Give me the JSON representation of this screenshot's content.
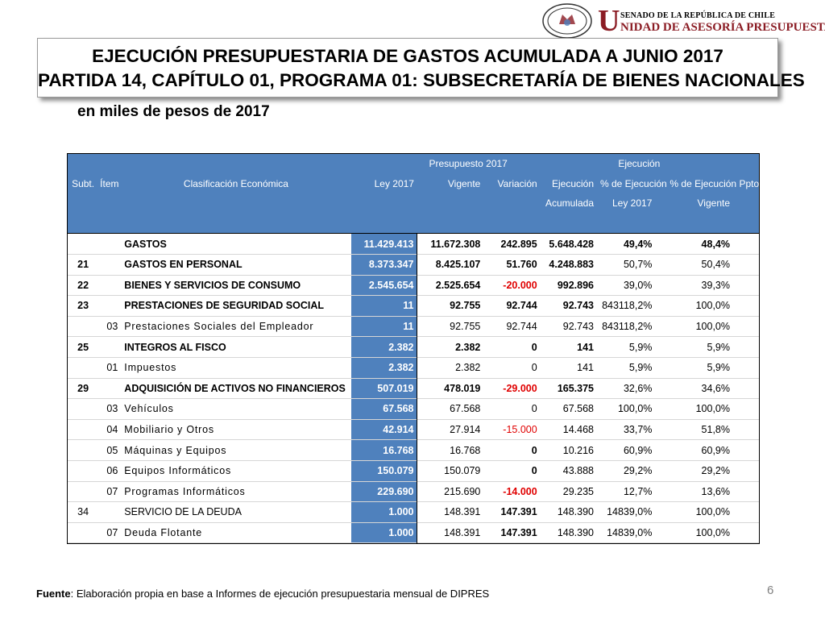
{
  "header": {
    "logo_small": "SENADO DE LA REPÚBLICA DE CHILE",
    "logo_initial": "U",
    "logo_main": "NIDAD DE ASESORÍA PRESUPUESTARIA",
    "seal_text": "REPÚBLICA DE CHILE",
    "seal_bottom": "SENADO"
  },
  "title": {
    "line1": "EJECUCIÓN PRESUPUESTARIA DE GASTOS ACUMULADA A JUNIO 2017",
    "line2": "PARTIDA 14, CAPÍTULO 01, PROGRAMA 01: SUBSECRETARÍA DE BIENES NACIONALES"
  },
  "subtitle": "en miles de pesos de 2017",
  "table": {
    "group_presupuesto": "Presupuesto 2017",
    "group_ejecucion": "Ejecución",
    "col_subt": "Subt.",
    "col_item": "Ítem",
    "col_clasificacion": "Clasificación Económica",
    "col_ley": "Ley 2017",
    "col_vigente": "Vigente",
    "col_variacion": "Variación",
    "col_ejec_line1": "Ejecución",
    "col_ejec_line2": "Acumulada",
    "col_pct_ley_line1": "% de Ejecución",
    "col_pct_ley_line2": "Ley 2017",
    "col_pct_vig_line1": "% de Ejecución Ppto.",
    "col_pct_vig_line2": "Vigente",
    "rows": [
      {
        "subt": "",
        "item": "",
        "name": "GASTOS",
        "ley": "11.429.413",
        "vigente": "11.672.308",
        "variacion": "242.895",
        "ejecucion": "5.648.428",
        "pct_ley": "49,4%",
        "pct_vig": "48,4%",
        "level": "total"
      },
      {
        "subt": "21",
        "item": "",
        "name": "GASTOS EN PERSONAL",
        "ley": "8.373.347",
        "vigente": "8.425.107",
        "variacion": "51.760",
        "ejecucion": "4.248.883",
        "pct_ley": "50,7%",
        "pct_vig": "50,4%",
        "level": "subt"
      },
      {
        "subt": "22",
        "item": "",
        "name": "BIENES Y SERVICIOS DE CONSUMO",
        "ley": "2.545.654",
        "vigente": "2.525.654",
        "variacion": "-20.000",
        "ejecucion": "992.896",
        "pct_ley": "39,0%",
        "pct_vig": "39,3%",
        "level": "subt"
      },
      {
        "subt": "23",
        "item": "",
        "name": "PRESTACIONES DE SEGURIDAD SOCIAL",
        "ley": "11",
        "vigente": "92.755",
        "variacion": "92.744",
        "ejecucion": "92.743",
        "pct_ley": "843118,2%",
        "pct_vig": "100,0%",
        "level": "subt"
      },
      {
        "subt": "",
        "item": "03",
        "name": "Prestaciones Sociales del Empleador",
        "ley": "11",
        "vigente": "92.755",
        "variacion": "92.744",
        "ejecucion": "92.743",
        "pct_ley": "843118,2%",
        "pct_vig": "100,0%",
        "level": "item"
      },
      {
        "subt": "25",
        "item": "",
        "name": "INTEGROS AL FISCO",
        "ley": "2.382",
        "vigente": "2.382",
        "variacion": "0",
        "ejecucion": "141",
        "pct_ley": "5,9%",
        "pct_vig": "5,9%",
        "level": "subt"
      },
      {
        "subt": "",
        "item": "01",
        "name": "Impuestos",
        "ley": "2.382",
        "vigente": "2.382",
        "variacion": "0",
        "ejecucion": "141",
        "pct_ley": "5,9%",
        "pct_vig": "5,9%",
        "level": "item"
      },
      {
        "subt": "29",
        "item": "",
        "name": "ADQUISICIÓN DE ACTIVOS NO FINANCIEROS",
        "ley": "507.019",
        "vigente": "478.019",
        "variacion": "-29.000",
        "ejecucion": "165.375",
        "pct_ley": "32,6%",
        "pct_vig": "34,6%",
        "level": "subt"
      },
      {
        "subt": "",
        "item": "03",
        "name": "Vehículos",
        "ley": "67.568",
        "vigente": "67.568",
        "variacion": "0",
        "ejecucion": "67.568",
        "pct_ley": "100,0%",
        "pct_vig": "100,0%",
        "level": "item"
      },
      {
        "subt": "",
        "item": "04",
        "name": "Mobiliario y Otros",
        "ley": "42.914",
        "vigente": "27.914",
        "variacion": "-15.000",
        "ejecucion": "14.468",
        "pct_ley": "33,7%",
        "pct_vig": "51,8%",
        "level": "item"
      },
      {
        "subt": "",
        "item": "05",
        "name": "Máquinas y Equipos",
        "ley": "16.768",
        "vigente": "16.768",
        "variacion": "0",
        "ejecucion": "10.216",
        "pct_ley": "60,9%",
        "pct_vig": "60,9%",
        "level": "item",
        "var_bold": true
      },
      {
        "subt": "",
        "item": "06",
        "name": "Equipos Informáticos",
        "ley": "150.079",
        "vigente": "150.079",
        "variacion": "0",
        "ejecucion": "43.888",
        "pct_ley": "29,2%",
        "pct_vig": "29,2%",
        "level": "item",
        "var_bold": true
      },
      {
        "subt": "",
        "item": "07",
        "name": "Programas Informáticos",
        "ley": "229.690",
        "vigente": "215.690",
        "variacion": "-14.000",
        "ejecucion": "29.235",
        "pct_ley": "12,7%",
        "pct_vig": "13,6%",
        "level": "item",
        "var_bold": true
      },
      {
        "subt": "34",
        "item": "",
        "name": "SERVICIO DE LA DEUDA",
        "ley": "1.000",
        "vigente": "148.391",
        "variacion": "147.391",
        "ejecucion": "148.390",
        "pct_ley": "14839,0%",
        "pct_vig": "100,0%",
        "level": "subt-plain",
        "var_bold": true
      },
      {
        "subt": "",
        "item": "07",
        "name": "Deuda Flotante",
        "ley": "1.000",
        "vigente": "148.391",
        "variacion": "147.391",
        "ejecucion": "148.390",
        "pct_ley": "14839,0%",
        "pct_vig": "100,0%",
        "level": "item",
        "var_bold": true
      }
    ]
  },
  "footer": {
    "label": "Fuente",
    "text": ": Elaboración propia en base  a Informes de ejecución presupuestaria mensual de DIPRES"
  },
  "page_number": "6",
  "colors": {
    "header_blue": "#4f81bd",
    "negative_red": "#e00000",
    "brand_red": "#8b1c24"
  }
}
